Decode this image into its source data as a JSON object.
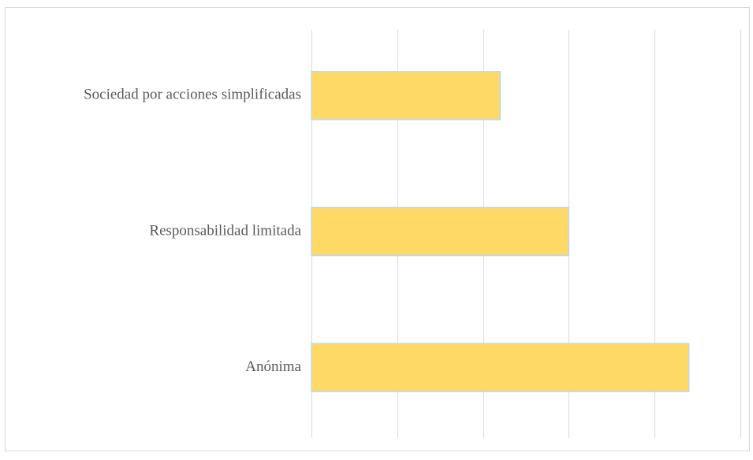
{
  "chart_data": {
    "type": "bar",
    "orientation": "horizontal",
    "categories": [
      "Sociedad por acciones simplificadas",
      "Responsabilidad limitada",
      "Anónima"
    ],
    "series": [
      {
        "values": [
          22,
          30,
          44
        ]
      }
    ],
    "xlim": [
      0,
      50
    ],
    "x_major_step": 10,
    "x_tick_labels_shown": false,
    "grid": {
      "vertical": true,
      "horizontal": false
    },
    "legend": "none",
    "title": "",
    "xlabel": "",
    "ylabel": "",
    "colors": {
      "bar_fill": "#FFD966",
      "bar_stroke": "#BDD7EE",
      "grid": "#D9D9D9",
      "frame": "#D9D9D9",
      "label_text": "#595959"
    }
  }
}
